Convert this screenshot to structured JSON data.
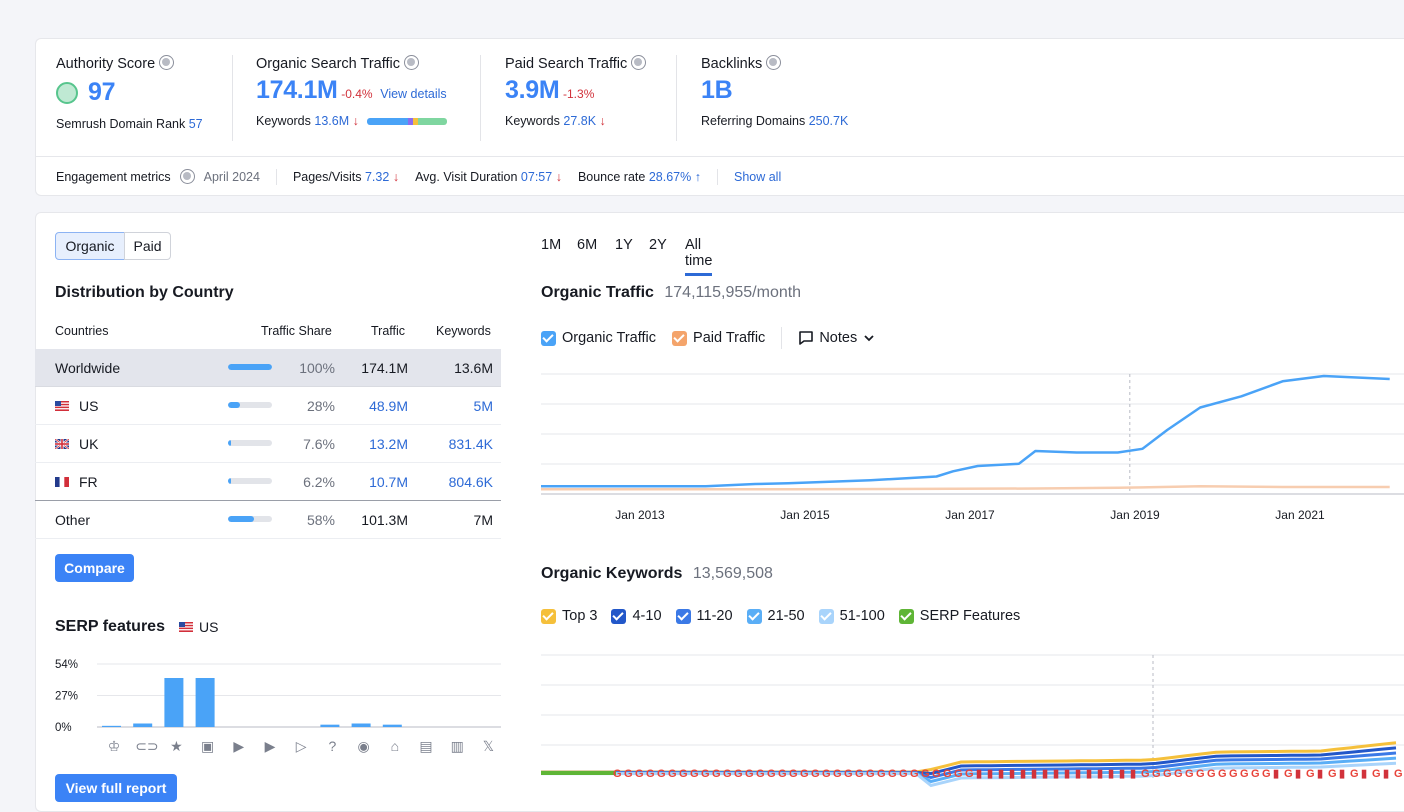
{
  "metrics": {
    "authority": {
      "title": "Authority Score",
      "value": "97",
      "rank_label": "Semrush Domain Rank",
      "rank_value": "57"
    },
    "organic": {
      "title": "Organic Search Traffic",
      "value": "174.1M",
      "change": "-0.4%",
      "details_link": "View details",
      "kw_label": "Keywords",
      "kw_value": "13.6M"
    },
    "paid": {
      "title": "Paid Search Traffic",
      "value": "3.9M",
      "change": "-1.3%",
      "kw_label": "Keywords",
      "kw_value": "27.8K"
    },
    "backlinks": {
      "title": "Backlinks",
      "value": "1B",
      "ref_label": "Referring Domains",
      "ref_value": "250.7K"
    }
  },
  "engagement": {
    "label": "Engagement metrics",
    "date": "April 2024",
    "pages_label": "Pages/Visits",
    "pages_value": "7.32",
    "duration_label": "Avg. Visit Duration",
    "duration_value": "07:57",
    "bounce_label": "Bounce rate",
    "bounce_value": "28.67%",
    "show_all": "Show all"
  },
  "toggle": {
    "organic": "Organic",
    "paid": "Paid"
  },
  "distribution": {
    "title": "Distribution by Country",
    "headers": {
      "countries": "Countries",
      "share": "Traffic Share",
      "traffic": "Traffic",
      "keywords": "Keywords"
    },
    "rows": [
      {
        "country": "Worldwide",
        "share": "100%",
        "share_frac": 1.0,
        "traffic": "174.1M",
        "keywords": "13.6M"
      },
      {
        "country": "US",
        "share": "28%",
        "share_frac": 0.28,
        "traffic": "48.9M",
        "keywords": "5M"
      },
      {
        "country": "UK",
        "share": "7.6%",
        "share_frac": 0.076,
        "traffic": "13.2M",
        "keywords": "831.4K"
      },
      {
        "country": "FR",
        "share": "6.2%",
        "share_frac": 0.062,
        "traffic": "10.7M",
        "keywords": "804.6K"
      },
      {
        "country": "Other",
        "share": "58%",
        "share_frac": 0.58,
        "traffic": "101.3M",
        "keywords": "7M"
      }
    ],
    "compare_button": "Compare"
  },
  "serp": {
    "title": "SERP features",
    "country": "US",
    "view_report": "View full report",
    "chart_data": {
      "type": "bar",
      "ylim": [
        0,
        54
      ],
      "y_ticks": [
        "54%",
        "27%",
        "0%"
      ],
      "values": [
        1,
        3,
        42,
        42,
        0,
        0,
        0,
        2,
        3,
        2,
        0,
        0,
        0
      ]
    },
    "icons": [
      "crown-icon",
      "link-icon",
      "star-icon",
      "image-icon",
      "video-icon",
      "video-box-icon",
      "play-icon",
      "faq-icon",
      "location-icon",
      "education-icon",
      "news-icon",
      "jobs-icon",
      "x-icon"
    ]
  },
  "periods": [
    "1M",
    "6M",
    "1Y",
    "2Y",
    "All time"
  ],
  "active_period": "All time",
  "organic_traffic": {
    "title": "Organic Traffic",
    "value": "174,115,955/month",
    "legend": {
      "organic": "Organic Traffic",
      "paid": "Paid Traffic",
      "notes": "Notes"
    },
    "chart_data": {
      "type": "line",
      "x_ticks": [
        "Jan 2013",
        "Jan 2015",
        "Jan 2017",
        "Jan 2019",
        "Jan 2021"
      ],
      "series": [
        {
          "name": "Organic Traffic",
          "color": "#4aa3f7",
          "x": [
            2012.0,
            2013.0,
            2014.0,
            2014.6,
            2015.0,
            2016.0,
            2016.8,
            2017.0,
            2017.3,
            2017.8,
            2018.0,
            2018.5,
            2019.0,
            2019.3,
            2019.6,
            2020.0,
            2020.5,
            2021.0,
            2021.5,
            2022.3
          ],
          "y": [
            5,
            5,
            5,
            8,
            9,
            13,
            18,
            25,
            32,
            35,
            52,
            50,
            50,
            55,
            80,
            110,
            125,
            145,
            152,
            148
          ]
        },
        {
          "name": "Paid Traffic",
          "color": "#f4a46b",
          "x": [
            2012.0,
            2015.0,
            2018.0,
            2019.0,
            2020.0,
            2021.0,
            2022.3
          ],
          "y": [
            1,
            1,
            2,
            3,
            5,
            4,
            4
          ]
        }
      ]
    }
  },
  "organic_keywords": {
    "title": "Organic Keywords",
    "value": "13,569,508",
    "legend": [
      "Top 3",
      "4-10",
      "11-20",
      "21-50",
      "51-100",
      "SERP Features"
    ],
    "legend_colors": [
      "#f5c03b",
      "#2257c9",
      "#3b79e6",
      "#5aaef6",
      "#a9d4fb",
      "#5fb536"
    ]
  }
}
